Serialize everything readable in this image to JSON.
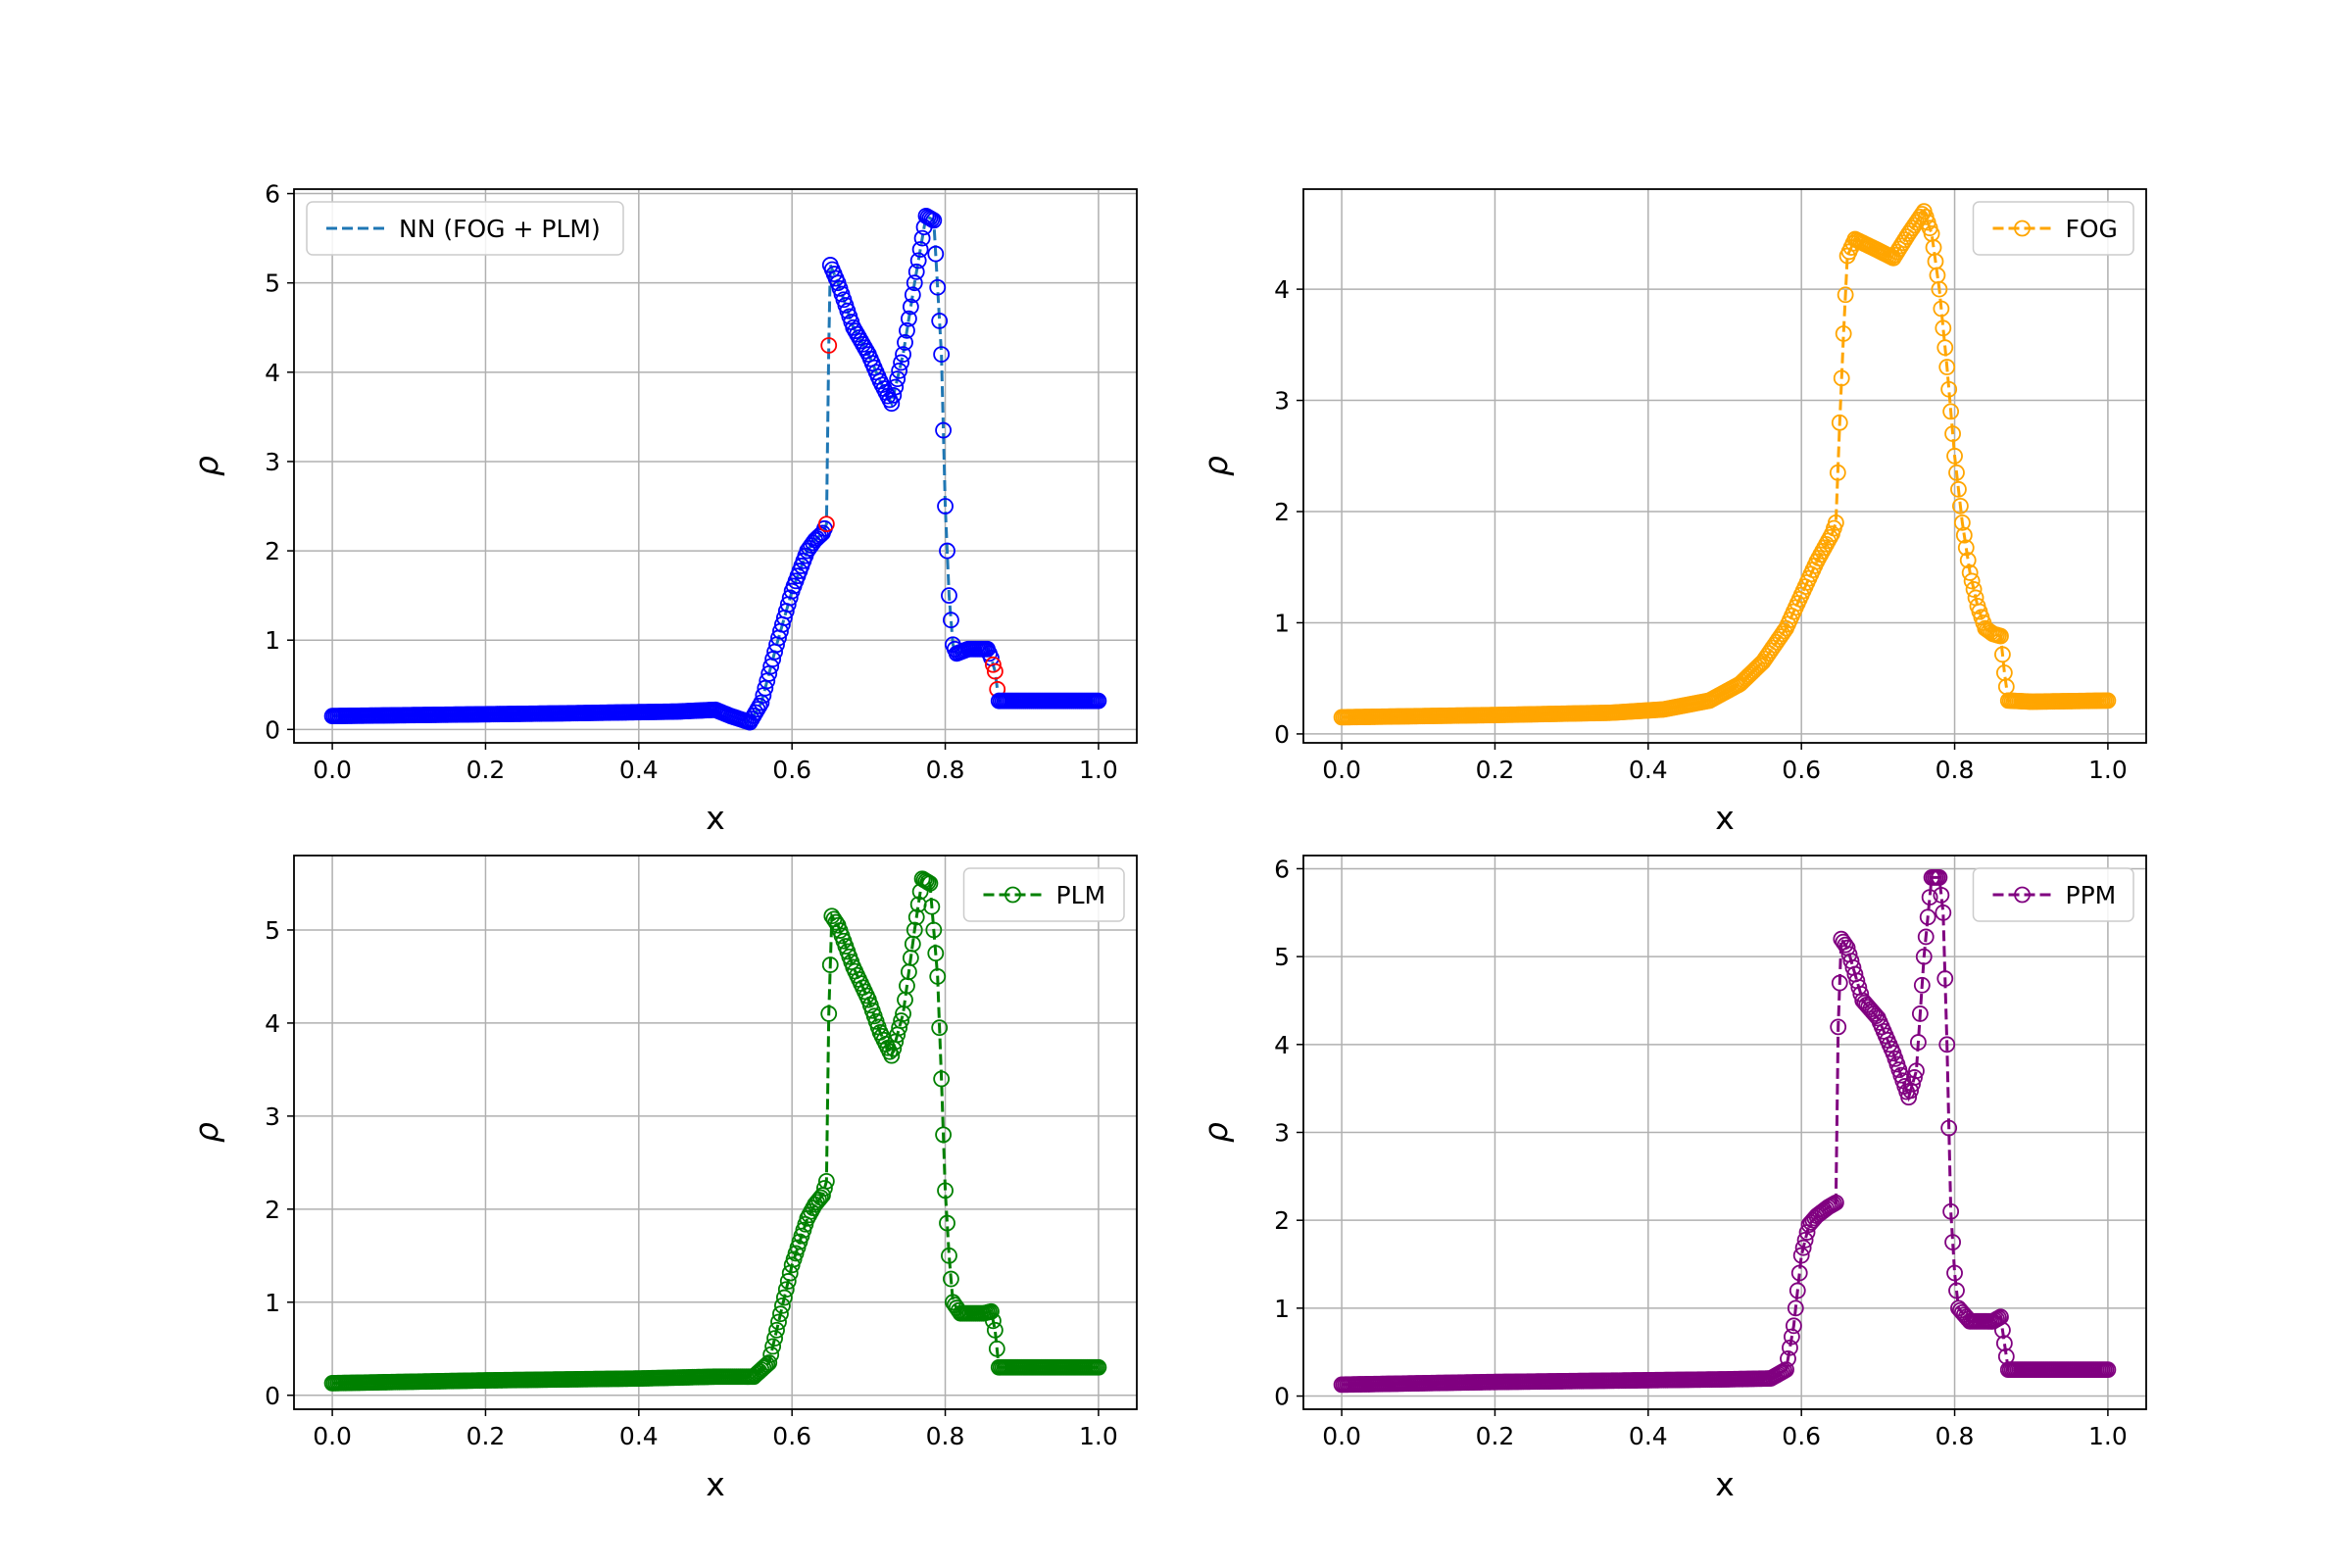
{
  "chart_data": [
    {
      "type": "line",
      "xlabel": "x",
      "ylabel": "ρ",
      "xlim": [
        -0.05,
        1.05
      ],
      "ylim": [
        -0.15,
        6.05
      ],
      "xticks": [
        "0.0",
        "0.2",
        "0.4",
        "0.6",
        "0.8",
        "1.0"
      ],
      "yticks": [
        "0",
        "1",
        "2",
        "3",
        "4",
        "5",
        "6"
      ],
      "grid": true,
      "legend_position": "top-left",
      "series": [
        {
          "name": "NN (FOG + PLM)",
          "color": "#0000ff",
          "line_color": "#1f77b4",
          "flagged_marker_color": "#ff0000",
          "marker": "open-circle",
          "linestyle": "dashed",
          "x": [
            0.0,
            0.1,
            0.3,
            0.45,
            0.5,
            0.52,
            0.545,
            0.56,
            0.58,
            0.6,
            0.62,
            0.63,
            0.64,
            0.645,
            0.648,
            0.65,
            0.66,
            0.68,
            0.7,
            0.715,
            0.73,
            0.745,
            0.76,
            0.775,
            0.785,
            0.795,
            0.8,
            0.805,
            0.81,
            0.815,
            0.83,
            0.855,
            0.86,
            0.865,
            0.868,
            0.87,
            0.9,
            1.0
          ],
          "y": [
            0.15,
            0.16,
            0.18,
            0.2,
            0.22,
            0.15,
            0.08,
            0.3,
            0.95,
            1.55,
            2.0,
            2.12,
            2.2,
            2.3,
            4.3,
            5.2,
            5.0,
            4.5,
            4.2,
            3.9,
            3.65,
            4.2,
            5.0,
            5.75,
            5.7,
            4.2,
            2.5,
            1.5,
            0.95,
            0.85,
            0.9,
            0.9,
            0.8,
            0.65,
            0.45,
            0.32,
            0.32,
            0.32
          ]
        }
      ]
    },
    {
      "type": "line",
      "xlabel": "x",
      "ylabel": "ρ",
      "xlim": [
        -0.05,
        1.05
      ],
      "ylim": [
        -0.08,
        4.9
      ],
      "xticks": [
        "0.0",
        "0.2",
        "0.4",
        "0.6",
        "0.8",
        "1.0"
      ],
      "yticks": [
        "0",
        "1",
        "2",
        "3",
        "4"
      ],
      "grid": true,
      "legend_position": "top-right",
      "series": [
        {
          "name": "FOG",
          "color": "#ffa500",
          "marker": "open-circle",
          "linestyle": "dashed",
          "x": [
            0.0,
            0.2,
            0.35,
            0.42,
            0.48,
            0.52,
            0.55,
            0.58,
            0.6,
            0.62,
            0.64,
            0.645,
            0.65,
            0.655,
            0.66,
            0.67,
            0.7,
            0.72,
            0.74,
            0.76,
            0.77,
            0.78,
            0.79,
            0.8,
            0.81,
            0.82,
            0.83,
            0.84,
            0.85,
            0.86,
            0.865,
            0.87,
            0.9,
            1.0
          ],
          "y": [
            0.15,
            0.17,
            0.19,
            0.22,
            0.3,
            0.45,
            0.65,
            0.95,
            1.25,
            1.55,
            1.8,
            1.9,
            2.8,
            3.6,
            4.3,
            4.45,
            4.35,
            4.28,
            4.5,
            4.7,
            4.5,
            4.0,
            3.3,
            2.5,
            1.9,
            1.45,
            1.15,
            0.95,
            0.9,
            0.88,
            0.55,
            0.3,
            0.29,
            0.3
          ]
        }
      ]
    },
    {
      "type": "line",
      "xlabel": "x",
      "ylabel": "ρ",
      "xlim": [
        -0.05,
        1.05
      ],
      "ylim": [
        -0.15,
        5.8
      ],
      "xticks": [
        "0.0",
        "0.2",
        "0.4",
        "0.6",
        "0.8",
        "1.0"
      ],
      "yticks": [
        "0",
        "1",
        "2",
        "3",
        "4",
        "5"
      ],
      "grid": true,
      "legend_position": "top-right",
      "series": [
        {
          "name": "PLM",
          "color": "#008000",
          "marker": "open-circle",
          "linestyle": "dashed",
          "x": [
            0.0,
            0.2,
            0.4,
            0.5,
            0.55,
            0.57,
            0.58,
            0.6,
            0.62,
            0.63,
            0.64,
            0.645,
            0.648,
            0.652,
            0.66,
            0.68,
            0.7,
            0.715,
            0.73,
            0.745,
            0.76,
            0.77,
            0.78,
            0.79,
            0.795,
            0.8,
            0.805,
            0.81,
            0.82,
            0.85,
            0.86,
            0.865,
            0.87,
            0.9,
            1.0
          ],
          "y": [
            0.13,
            0.16,
            0.18,
            0.2,
            0.2,
            0.35,
            0.7,
            1.4,
            1.9,
            2.05,
            2.15,
            2.3,
            4.1,
            5.15,
            5.05,
            4.6,
            4.25,
            3.9,
            3.65,
            4.1,
            5.0,
            5.55,
            5.5,
            4.5,
            3.4,
            2.2,
            1.5,
            1.0,
            0.88,
            0.88,
            0.9,
            0.7,
            0.3,
            0.3,
            0.3
          ]
        }
      ]
    },
    {
      "type": "line",
      "xlabel": "x",
      "ylabel": "ρ",
      "xlim": [
        -0.05,
        1.05
      ],
      "ylim": [
        -0.15,
        6.15
      ],
      "xticks": [
        "0.0",
        "0.2",
        "0.4",
        "0.6",
        "0.8",
        "1.0"
      ],
      "yticks": [
        "0",
        "1",
        "2",
        "3",
        "4",
        "5",
        "6"
      ],
      "grid": true,
      "legend_position": "top-right",
      "series": [
        {
          "name": "PPM",
          "color": "#800080",
          "marker": "open-circle",
          "linestyle": "dashed",
          "x": [
            0.0,
            0.2,
            0.4,
            0.5,
            0.56,
            0.58,
            0.59,
            0.6,
            0.61,
            0.62,
            0.635,
            0.645,
            0.648,
            0.652,
            0.66,
            0.68,
            0.7,
            0.72,
            0.74,
            0.75,
            0.76,
            0.77,
            0.78,
            0.785,
            0.79,
            0.795,
            0.8,
            0.805,
            0.82,
            0.85,
            0.86,
            0.865,
            0.87,
            0.9,
            1.0
          ],
          "y": [
            0.13,
            0.16,
            0.18,
            0.19,
            0.2,
            0.3,
            0.8,
            1.6,
            1.95,
            2.05,
            2.15,
            2.2,
            4.2,
            5.2,
            5.1,
            4.5,
            4.3,
            3.9,
            3.4,
            3.7,
            5.0,
            5.9,
            5.9,
            5.5,
            4.0,
            2.1,
            1.4,
            1.0,
            0.85,
            0.85,
            0.9,
            0.6,
            0.3,
            0.3,
            0.3
          ]
        }
      ]
    }
  ]
}
